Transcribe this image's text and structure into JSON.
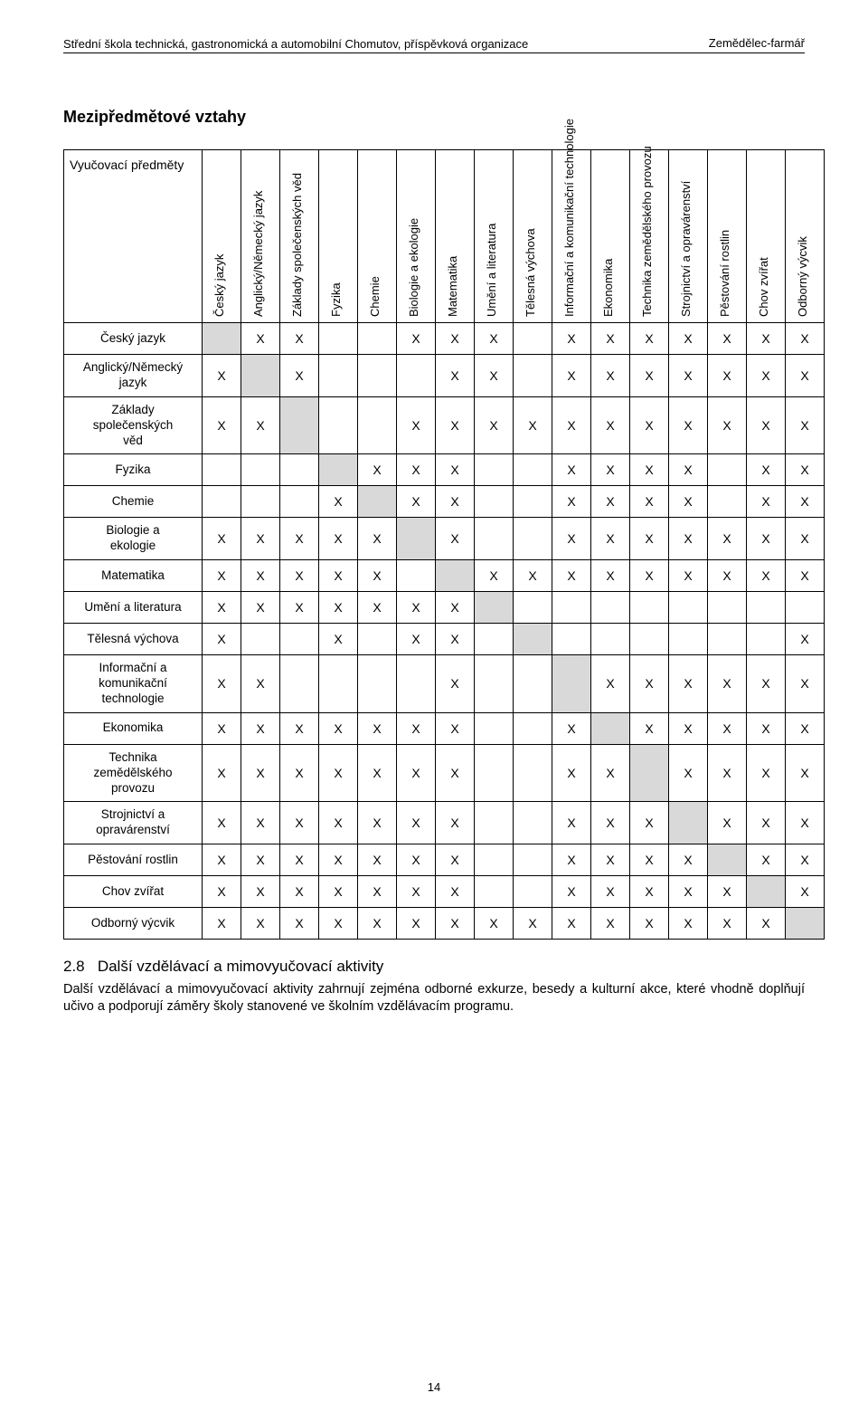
{
  "header": {
    "left": "Střední škola technická, gastronomická a automobilní Chomutov, příspěvková organizace",
    "right": "Zemědělec-farmář"
  },
  "section_title": "Mezipředmětové vztahy",
  "table": {
    "corner_label": "Vyučovací předměty",
    "subjects": [
      "Český jazyk",
      "Anglický/Německý jazyk",
      "Základy společenských věd",
      "Fyzika",
      "Chemie",
      "Biologie a ekologie",
      "Matematika",
      "Umění a literatura",
      "Tělesná výchova",
      "Informační a komunikační technologie",
      "Ekonomika",
      "Technika zemědělského provozu",
      "Strojnictví a opravárenství",
      "Pěstování rostlin",
      "Chov zvířat",
      "Odborný výcvik"
    ],
    "mark": "X",
    "shaded_color": "#d9d9d9",
    "border_color": "#000000",
    "matrix": [
      [
        0,
        1,
        1,
        0,
        0,
        1,
        1,
        1,
        0,
        1,
        1,
        1,
        1,
        1,
        1,
        1
      ],
      [
        1,
        0,
        1,
        0,
        0,
        0,
        1,
        1,
        0,
        1,
        1,
        1,
        1,
        1,
        1,
        1
      ],
      [
        1,
        1,
        0,
        0,
        0,
        1,
        1,
        1,
        1,
        1,
        1,
        1,
        1,
        1,
        1,
        1
      ],
      [
        0,
        0,
        0,
        0,
        1,
        1,
        1,
        0,
        0,
        1,
        1,
        1,
        1,
        0,
        1,
        1
      ],
      [
        0,
        0,
        0,
        1,
        0,
        1,
        1,
        0,
        0,
        1,
        1,
        1,
        1,
        0,
        1,
        1
      ],
      [
        1,
        1,
        1,
        1,
        1,
        0,
        1,
        0,
        0,
        1,
        1,
        1,
        1,
        1,
        1,
        1
      ],
      [
        1,
        1,
        1,
        1,
        1,
        0,
        0,
        1,
        1,
        1,
        1,
        1,
        1,
        1,
        1,
        1
      ],
      [
        1,
        1,
        1,
        1,
        1,
        1,
        1,
        0,
        0,
        0,
        0,
        0,
        0,
        0,
        0,
        0
      ],
      [
        1,
        0,
        0,
        1,
        0,
        1,
        1,
        0,
        0,
        0,
        0,
        0,
        0,
        0,
        0,
        1
      ],
      [
        1,
        1,
        0,
        0,
        0,
        0,
        1,
        0,
        0,
        0,
        1,
        1,
        1,
        1,
        1,
        1
      ],
      [
        1,
        1,
        1,
        1,
        1,
        1,
        1,
        0,
        0,
        1,
        0,
        1,
        1,
        1,
        1,
        1
      ],
      [
        1,
        1,
        1,
        1,
        1,
        1,
        1,
        0,
        0,
        1,
        1,
        0,
        1,
        1,
        1,
        1
      ],
      [
        1,
        1,
        1,
        1,
        1,
        1,
        1,
        0,
        0,
        1,
        1,
        1,
        0,
        1,
        1,
        1
      ],
      [
        1,
        1,
        1,
        1,
        1,
        1,
        1,
        0,
        0,
        1,
        1,
        1,
        1,
        0,
        1,
        1
      ],
      [
        1,
        1,
        1,
        1,
        1,
        1,
        1,
        0,
        0,
        1,
        1,
        1,
        1,
        1,
        0,
        1
      ],
      [
        1,
        1,
        1,
        1,
        1,
        1,
        1,
        1,
        1,
        1,
        1,
        1,
        1,
        1,
        1,
        0
      ]
    ]
  },
  "subsection": {
    "number": "2.8",
    "title": "Další vzdělávací a mimovyučovací aktivity",
    "body": "Další vzdělávací a mimovyučovací aktivity zahrnují zejména odborné exkurze, besedy a kulturní akce, které vhodně doplňují učivo a podporují záměry školy stanovené ve školním vzdělávacím programu."
  },
  "page_number": "14"
}
